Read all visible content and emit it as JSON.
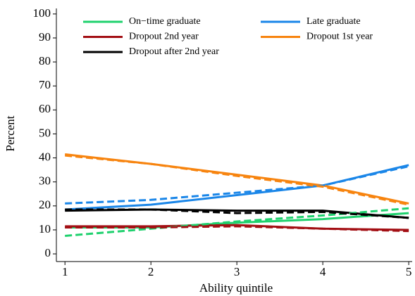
{
  "chart_data": {
    "type": "line",
    "x_label": "Ability quintile",
    "y_label": "Percent",
    "x": [
      1,
      2,
      3,
      4,
      5
    ],
    "xlim": [
      0.9,
      5.04
    ],
    "xticks": [
      1,
      2,
      3,
      4,
      5
    ],
    "ylim": [
      -3.2,
      102.3
    ],
    "yticks": [
      0,
      10,
      20,
      30,
      40,
      50,
      60,
      70,
      80,
      90,
      100
    ],
    "series": [
      {
        "name": "On−time graduate",
        "color": "#1fd16e",
        "values": [
          11,
          11,
          13,
          14.5,
          17
        ]
      },
      {
        "name": "Late graduate",
        "color": "#1a86e8",
        "values": [
          18.5,
          20.5,
          24.5,
          28.5,
          37
        ]
      },
      {
        "name": "Dropout 2nd year",
        "color": "#a30f14",
        "values": [
          11.5,
          11.5,
          12,
          10.5,
          10
        ]
      },
      {
        "name": "Dropout 1st year",
        "color": "#f7840f",
        "values": [
          41.5,
          37.5,
          33,
          28.5,
          21
        ]
      },
      {
        "name": "Dropout after 2nd year",
        "color": "#000000",
        "values": [
          18,
          18.5,
          18,
          18,
          15
        ]
      },
      {
        "color": "#1fd16e",
        "dashed": true,
        "values": [
          7.5,
          10.5,
          13.5,
          16,
          19
        ]
      },
      {
        "color": "#1a86e8",
        "dashed": true,
        "values": [
          21,
          22.5,
          25.5,
          28.5,
          36.5
        ]
      },
      {
        "color": "#a30f14",
        "dashed": true,
        "values": [
          11,
          11,
          11.5,
          10.5,
          9.5
        ]
      },
      {
        "color": "#f7840f",
        "dashed": true,
        "values": [
          41,
          37.5,
          32.5,
          28,
          20.5
        ]
      },
      {
        "color": "#000000",
        "dashed": true,
        "values": [
          18.5,
          18.5,
          17,
          17.5,
          15
        ]
      }
    ]
  }
}
